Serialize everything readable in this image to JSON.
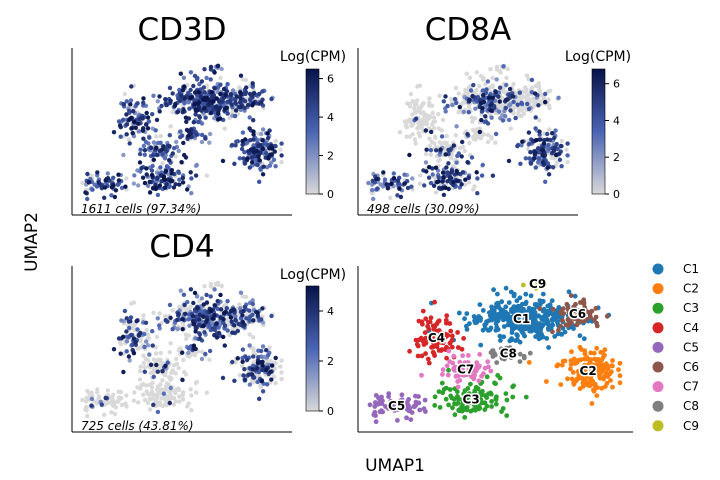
{
  "figure": {
    "ylabel": "UMAP2",
    "xlabel": "UMAP1"
  },
  "panels": [
    {
      "title": "CD3D",
      "colorbar_label": "Log(CPM)",
      "colorbar_ticks": [
        0,
        2,
        4,
        6
      ],
      "colorbar_max": 6.5,
      "note": "1611 cells (97.34%)",
      "expressed_fraction": 0.9734
    },
    {
      "title": "CD8A",
      "colorbar_label": "Log(CPM)",
      "colorbar_ticks": [
        0,
        2,
        4,
        6
      ],
      "colorbar_max": 6.8,
      "note": "498 cells (30.09%)",
      "expressed_fraction": 0.3009
    },
    {
      "title": "CD4",
      "colorbar_label": "Log(CPM)",
      "colorbar_ticks": [
        0,
        2,
        4
      ],
      "colorbar_max": 5.0,
      "note": "725 cells (43.81%)",
      "expressed_fraction": 0.4381
    }
  ],
  "colors": {
    "low": "#d9d9d9",
    "mid": "#4a64b4",
    "high": "#08134a"
  },
  "chart_data": {
    "type": "scatter",
    "legend_position": "right",
    "clusters": [
      {
        "name": "C1",
        "color": "#1f77b4"
      },
      {
        "name": "C2",
        "color": "#ff7f0e"
      },
      {
        "name": "C3",
        "color": "#2ca02c"
      },
      {
        "name": "C4",
        "color": "#d62728"
      },
      {
        "name": "C5",
        "color": "#9467bd"
      },
      {
        "name": "C6",
        "color": "#8c564b"
      },
      {
        "name": "C7",
        "color": "#e377c2"
      },
      {
        "name": "C8",
        "color": "#7f7f7f"
      },
      {
        "name": "C9",
        "color": "#bcbd22"
      }
    ]
  }
}
